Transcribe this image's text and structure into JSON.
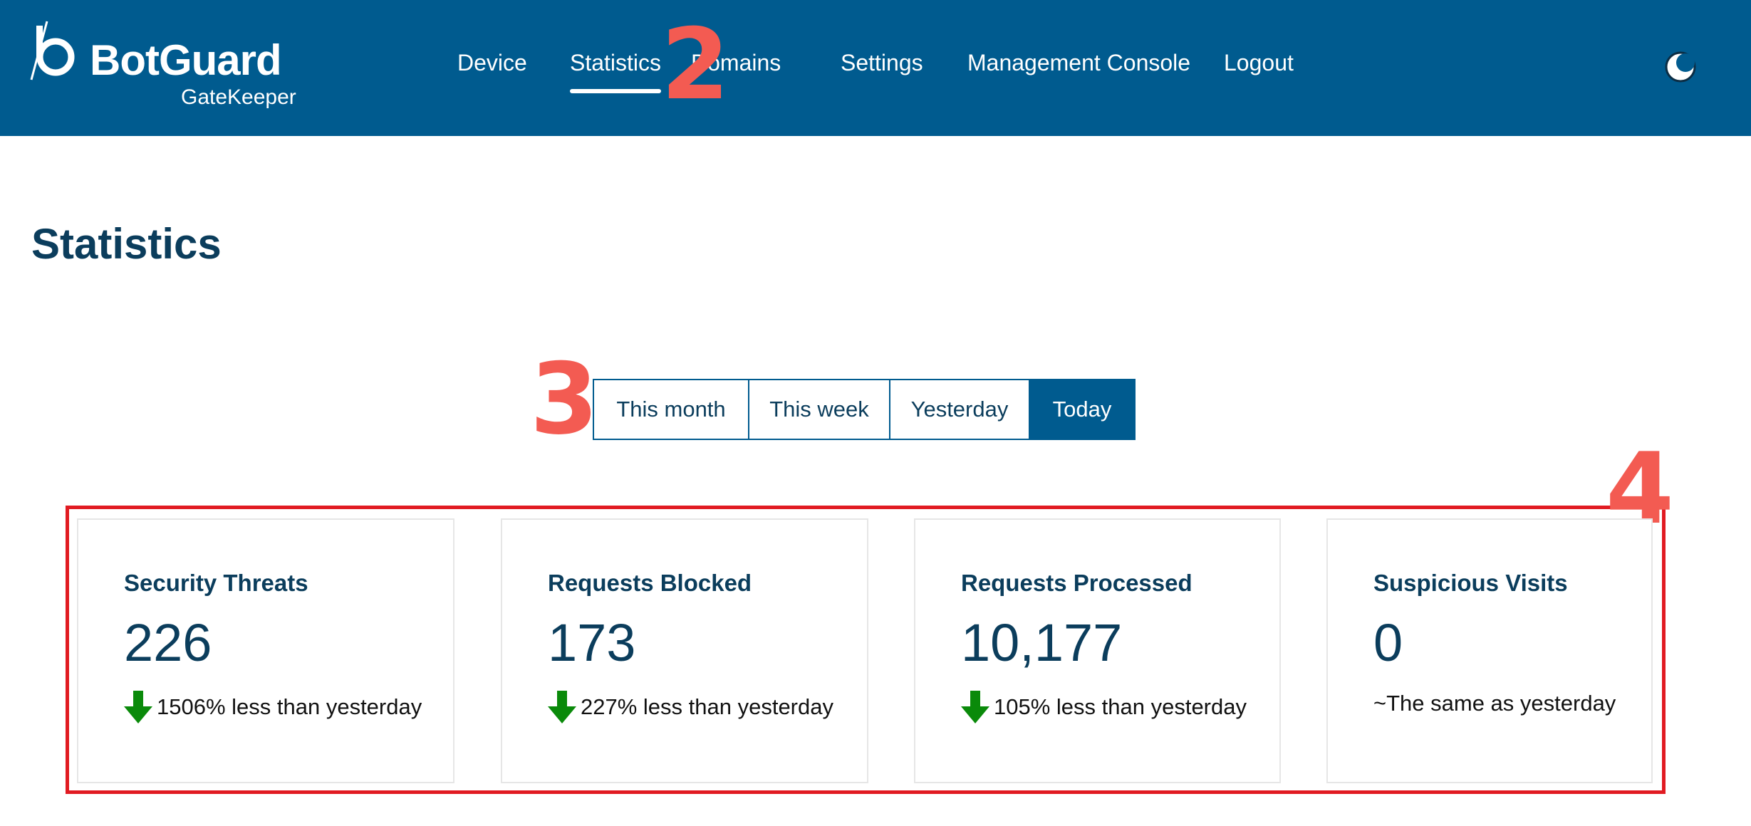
{
  "brand": {
    "name": "BotGuard",
    "product": "GateKeeper"
  },
  "nav": {
    "items": [
      {
        "label": "Device"
      },
      {
        "label": "Statistics"
      },
      {
        "label": "Domains"
      },
      {
        "label": "Settings"
      },
      {
        "label": "Management Console"
      },
      {
        "label": "Logout"
      }
    ],
    "active": "Statistics",
    "theme_toggle_icon": "moon-icon"
  },
  "page": {
    "title": "Statistics"
  },
  "period_selector": {
    "options": [
      "This month",
      "This week",
      "Yesterday",
      "Today"
    ],
    "selected": "Today"
  },
  "stats": [
    {
      "title": "Security Threats",
      "value": "226",
      "delta": "1506% less than yesterday",
      "trend": "down"
    },
    {
      "title": "Requests Blocked",
      "value": "173",
      "delta": "227% less than yesterday",
      "trend": "down"
    },
    {
      "title": "Requests Processed",
      "value": "10,177",
      "delta": "105% less than yesterday",
      "trend": "down"
    },
    {
      "title": "Suspicious Visits",
      "value": "0",
      "delta": "~The same as yesterday",
      "trend": "same"
    }
  ],
  "annotations": [
    "2",
    "3",
    "4"
  ],
  "colors": {
    "header": "#005b8f",
    "heading_text": "#0b3d5c",
    "trend_down": "#0a8a0a",
    "annotation": "#f35b52",
    "highlight_frame": "#e11b22"
  }
}
